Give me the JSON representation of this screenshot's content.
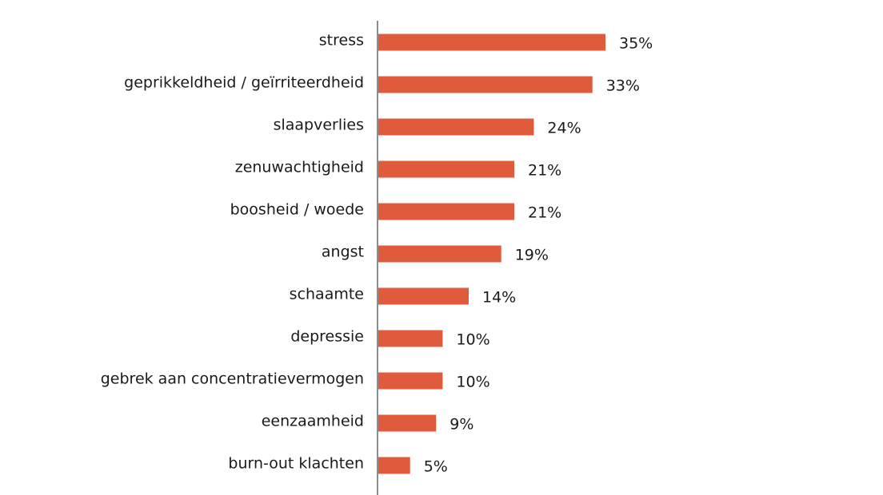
{
  "chart_data": {
    "type": "bar",
    "orientation": "horizontal",
    "categories": [
      "stress",
      "geprikkeldheid / geïrriteerdheid",
      "slaapverlies",
      "zenuwachtigheid",
      "boosheid / woede",
      "angst",
      "schaamte",
      "depressie",
      "gebrek aan concentratievermogen",
      "eenzaamheid",
      "burn-out klachten"
    ],
    "values": [
      35,
      33,
      24,
      21,
      21,
      19,
      14,
      10,
      10,
      9,
      5
    ],
    "value_labels": [
      "35%",
      "33%",
      "24%",
      "21%",
      "21%",
      "19%",
      "14%",
      "10%",
      "10%",
      "9%",
      "5%"
    ],
    "bar_color": "#e05a3c",
    "axis_color": "#8c8c8c",
    "xlim": [
      0,
      100
    ],
    "grid": false,
    "legend": "none"
  }
}
